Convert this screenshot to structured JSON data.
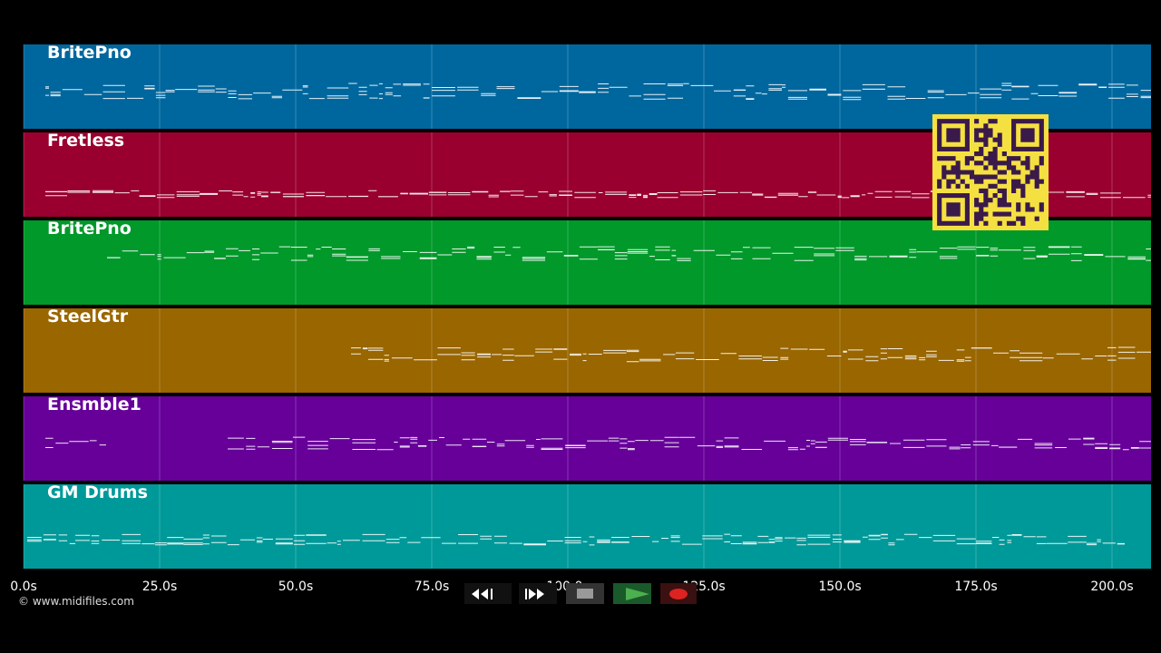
{
  "tracks": [
    {
      "name": "BritePno",
      "color": "#00679e"
    },
    {
      "name": "Fretless",
      "color": "#99002f"
    },
    {
      "name": "BritePno",
      "color": "#00992a"
    },
    {
      "name": "SteelGtr",
      "color": "#996600"
    },
    {
      "name": "Ensmble1",
      "color": "#660099"
    },
    {
      "name": "GM Drums",
      "color": "#009999"
    }
  ],
  "time_axis": {
    "labels": [
      "0.0s",
      "25.0s",
      "50.0s",
      "75.0s",
      "100.0s",
      "125.0s",
      "150.0s",
      "175.0s",
      "200.0s"
    ]
  },
  "footer": {
    "copyright": "© www.midifiles.com"
  }
}
